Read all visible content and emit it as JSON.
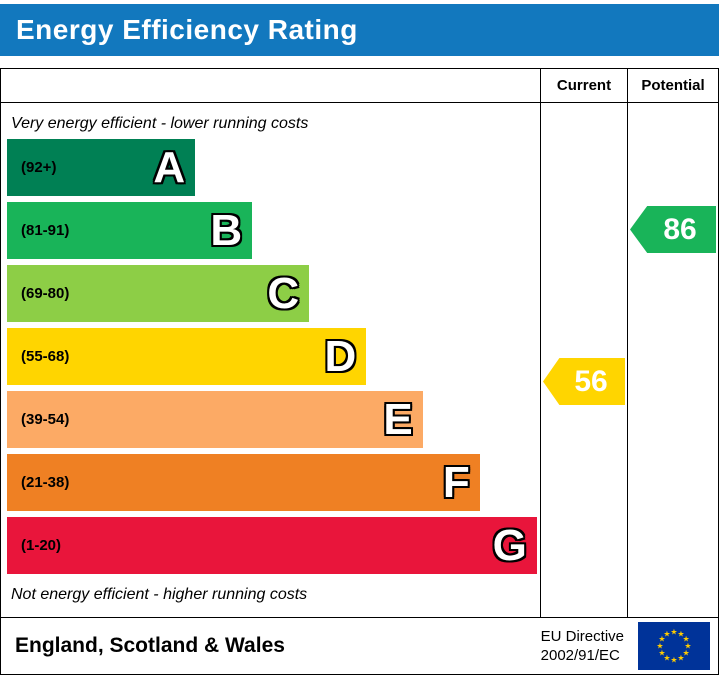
{
  "banner": {
    "title": "Energy Efficiency Rating",
    "bg_color": "#1278be",
    "text_color": "#ffffff"
  },
  "table": {
    "current_header": "Current",
    "potential_header": "Potential"
  },
  "chart": {
    "top_note": "Very energy efficient - lower running costs",
    "bottom_note": "Not energy efficient - higher running costs",
    "bands": [
      {
        "letter": "A",
        "range": "(92+)",
        "color": "#008054",
        "width_pct": 35.3
      },
      {
        "letter": "B",
        "range": "(81-91)",
        "color": "#19b459",
        "width_pct": 46.0
      },
      {
        "letter": "C",
        "range": "(69-80)",
        "color": "#8dce46",
        "width_pct": 56.7
      },
      {
        "letter": "D",
        "range": "(55-68)",
        "color": "#ffd500",
        "width_pct": 67.4
      },
      {
        "letter": "E",
        "range": "(39-54)",
        "color": "#fcaa65",
        "width_pct": 78.0
      },
      {
        "letter": "F",
        "range": "(21-38)",
        "color": "#ef8023",
        "width_pct": 88.7
      },
      {
        "letter": "G",
        "range": "(1-20)",
        "color": "#e9153b",
        "width_pct": 99.4
      }
    ],
    "current": {
      "value": "56",
      "band": "D",
      "color": "#ffd500"
    },
    "potential": {
      "value": "86",
      "band": "B",
      "color": "#19b459"
    }
  },
  "footer": {
    "region": "England, Scotland & Wales",
    "directive_line1": "EU Directive",
    "directive_line2": "2002/91/EC",
    "flag_colors": {
      "background": "#003399",
      "stars": "#FFCC00"
    }
  },
  "chart_data": {
    "type": "bar",
    "title": "Energy Efficiency Rating",
    "categories": [
      "A",
      "B",
      "C",
      "D",
      "E",
      "F",
      "G"
    ],
    "band_ranges": [
      "(92+)",
      "(81-91)",
      "(69-80)",
      "(55-68)",
      "(39-54)",
      "(21-38)",
      "(1-20)"
    ],
    "band_colors": [
      "#008054",
      "#19b459",
      "#8dce46",
      "#ffd500",
      "#fcaa65",
      "#ef8023",
      "#e9153b"
    ],
    "bar_relative_widths_pct": [
      35.3,
      46.0,
      56.7,
      67.4,
      78.0,
      88.7,
      99.4
    ],
    "columns": [
      "Current",
      "Potential"
    ],
    "current": {
      "value": 56,
      "band": "D"
    },
    "potential": {
      "value": 86,
      "band": "B"
    },
    "annotations": [
      "Very energy efficient - lower running costs",
      "Not energy efficient - higher running costs"
    ],
    "footer_text": [
      "England, Scotland & Wales",
      "EU Directive",
      "2002/91/EC"
    ],
    "legend_position": "none",
    "grid": false
  }
}
